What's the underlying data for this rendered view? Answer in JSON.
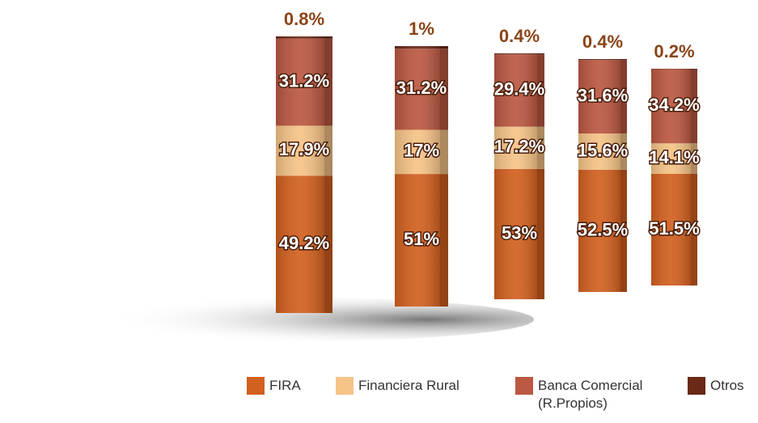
{
  "chart_data": {
    "type": "stacked-bar",
    "categories": [
      null,
      null,
      null,
      null,
      null
    ],
    "series": [
      {
        "name": "FIRA",
        "color": "#d2601f",
        "values": [
          49.2,
          51,
          53,
          52.5,
          51.5
        ],
        "value_labels": [
          "49.2%",
          "51%",
          "53%",
          "52.5%",
          "51.5%"
        ]
      },
      {
        "name": "Financiera Rural",
        "color": "#f6c487",
        "values": [
          17.9,
          17,
          17.2,
          15.6,
          14.1
        ],
        "value_labels": [
          "17.9%",
          "17%",
          "17.2%",
          "15.6%",
          "14.1%"
        ]
      },
      {
        "name": "Banca Comercial (R.Propios)",
        "color": "#bb5842",
        "values": [
          31.2,
          31.2,
          29.4,
          31.6,
          34.2
        ],
        "value_labels": [
          "31.2%",
          "31.2%",
          "29.4%",
          "31.6%",
          "34.2%"
        ]
      },
      {
        "name": "Otros",
        "color": "#6b2917",
        "values": [
          0.8,
          1,
          0.4,
          0.4,
          0.2
        ],
        "value_labels": [
          "0.8%",
          "1%",
          "0.4%",
          "0.4%",
          "0.2%"
        ]
      }
    ]
  }
}
